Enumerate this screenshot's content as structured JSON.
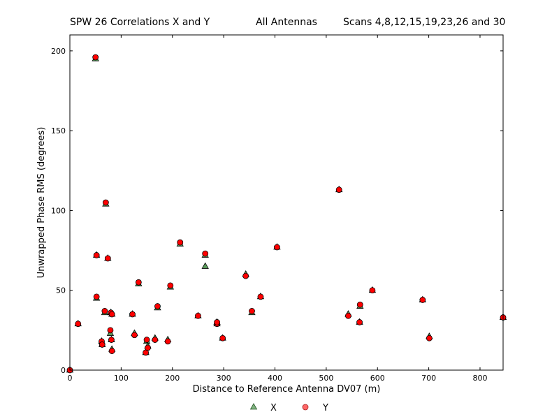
{
  "header": {
    "left": "SPW 26 Correlations X and Y",
    "center": "All Antennas",
    "right": "Scans 4,8,12,15,19,23,26 and 30"
  },
  "chart_data": {
    "type": "scatter",
    "xlabel": "Distance to Reference Antenna DV07 (m)",
    "ylabel": "Unwrapped Phase RMS (degrees)",
    "xlim": [
      0,
      845
    ],
    "ylim": [
      0,
      210
    ],
    "xticks": [
      0,
      100,
      200,
      300,
      400,
      500,
      600,
      700,
      800
    ],
    "yticks": [
      0,
      50,
      100,
      150,
      200
    ],
    "grid": false,
    "legend_position": "bottom-center",
    "series": [
      {
        "name": "X",
        "marker": "triangle",
        "color": "#5a9a5a",
        "points": [
          [
            0,
            0
          ],
          [
            16,
            29
          ],
          [
            50,
            195
          ],
          [
            52,
            72
          ],
          [
            52,
            45
          ],
          [
            62,
            18
          ],
          [
            63,
            16
          ],
          [
            68,
            36
          ],
          [
            70,
            104
          ],
          [
            74,
            70
          ],
          [
            79,
            23
          ],
          [
            80,
            36
          ],
          [
            81,
            19
          ],
          [
            82,
            13
          ],
          [
            82,
            35
          ],
          [
            122,
            35
          ],
          [
            126,
            23
          ],
          [
            134,
            54
          ],
          [
            148,
            11
          ],
          [
            150,
            18
          ],
          [
            152,
            15
          ],
          [
            166,
            20
          ],
          [
            171,
            39
          ],
          [
            191,
            19
          ],
          [
            196,
            52
          ],
          [
            215,
            79
          ],
          [
            250,
            34
          ],
          [
            264,
            65
          ],
          [
            264,
            72
          ],
          [
            287,
            29
          ],
          [
            287,
            30
          ],
          [
            298,
            20
          ],
          [
            343,
            60
          ],
          [
            355,
            36
          ],
          [
            372,
            46
          ],
          [
            404,
            77
          ],
          [
            525,
            113
          ],
          [
            543,
            35
          ],
          [
            565,
            30
          ],
          [
            566,
            40
          ],
          [
            590,
            50
          ],
          [
            688,
            44
          ],
          [
            701,
            21
          ],
          [
            845,
            33
          ]
        ]
      },
      {
        "name": "Y",
        "marker": "circle",
        "color": "#ff0000",
        "points": [
          [
            0,
            0
          ],
          [
            16,
            29
          ],
          [
            50,
            196
          ],
          [
            52,
            72
          ],
          [
            52,
            46
          ],
          [
            62,
            18
          ],
          [
            63,
            16
          ],
          [
            68,
            37
          ],
          [
            70,
            105
          ],
          [
            74,
            70
          ],
          [
            79,
            25
          ],
          [
            80,
            36
          ],
          [
            81,
            19
          ],
          [
            82,
            12
          ],
          [
            82,
            35
          ],
          [
            122,
            35
          ],
          [
            126,
            22
          ],
          [
            134,
            55
          ],
          [
            148,
            11
          ],
          [
            150,
            19
          ],
          [
            152,
            14
          ],
          [
            166,
            19
          ],
          [
            171,
            40
          ],
          [
            191,
            18
          ],
          [
            196,
            53
          ],
          [
            215,
            80
          ],
          [
            250,
            34
          ],
          [
            264,
            73
          ],
          [
            287,
            29
          ],
          [
            287,
            30
          ],
          [
            298,
            20
          ],
          [
            343,
            59
          ],
          [
            355,
            37
          ],
          [
            372,
            46
          ],
          [
            404,
            77
          ],
          [
            525,
            113
          ],
          [
            543,
            34
          ],
          [
            565,
            30
          ],
          [
            566,
            41
          ],
          [
            590,
            50
          ],
          [
            688,
            44
          ],
          [
            701,
            20
          ],
          [
            845,
            33
          ]
        ]
      }
    ]
  }
}
